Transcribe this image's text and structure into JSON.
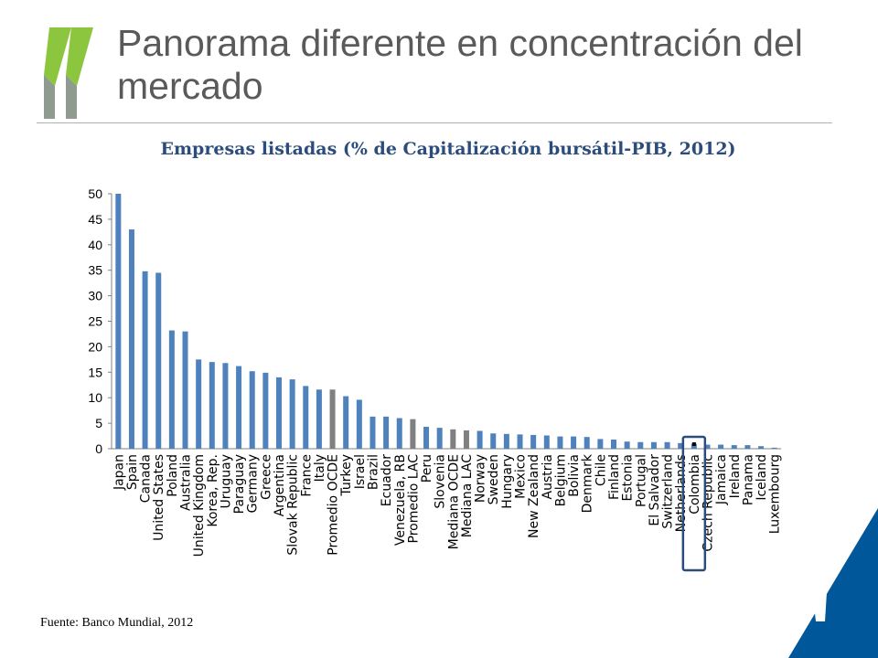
{
  "slide": {
    "title": "Panorama diferente en concentración del mercado",
    "source": "Fuente: Banco Mundial, 2012",
    "colors": {
      "title": "#5a5a5a",
      "chart_title": "#2c4d7c",
      "logo": "#8cc63f",
      "logo_shade": "#7a8a7a",
      "corner": "#00589a",
      "highlight_box": "#2c4d7c"
    }
  },
  "chart_data": {
    "type": "bar",
    "title": "Empresas listadas (% de Capitalización bursátil-PIB, 2012)",
    "xlabel": "",
    "ylabel": "",
    "ylim": [
      0,
      50
    ],
    "yticks": [
      0,
      5,
      10,
      15,
      20,
      25,
      30,
      35,
      40,
      45,
      50
    ],
    "grid": false,
    "colors": {
      "default": "#4f81bd",
      "aggregate": "#808080"
    },
    "highlight": "Colombia",
    "categories": [
      "Japan",
      "Spain",
      "Canada",
      "United States",
      "Poland",
      "Australia",
      "United Kingdom",
      "Korea, Rep.",
      "Uruguay",
      "Paraguay",
      "Germany",
      "Greece",
      "Argentina",
      "Slovak Republic",
      "France",
      "Italy",
      "Promedio OCDE",
      "Turkey",
      "Israel",
      "Brazil",
      "Ecuador",
      "Venezuela, RB",
      "Promedio LAC",
      "Peru",
      "Slovenia",
      "Mediana OCDE",
      "Mediana LAC",
      "Norway",
      "Sweden",
      "Hungary",
      "Mexico",
      "New Zealand",
      "Austria",
      "Belgium",
      "Bolivia",
      "Denmark",
      "Chile",
      "Finland",
      "Estonia",
      "Portugal",
      "El Salvador",
      "Switzerland",
      "Netherlands",
      "Colombia",
      "Czech Republic",
      "Jamaica",
      "Ireland",
      "Panama",
      "Iceland",
      "Luxembourg"
    ],
    "values": [
      50.0,
      43.0,
      34.8,
      34.5,
      23.2,
      23.0,
      17.5,
      17.0,
      16.8,
      16.2,
      15.2,
      14.9,
      14.0,
      13.6,
      12.3,
      11.6,
      11.6,
      10.3,
      9.6,
      6.3,
      6.3,
      6.0,
      5.8,
      4.3,
      4.1,
      3.8,
      3.6,
      3.5,
      3.0,
      2.9,
      2.8,
      2.7,
      2.6,
      2.4,
      2.4,
      2.3,
      1.9,
      1.8,
      1.4,
      1.3,
      1.3,
      1.3,
      1.1,
      1.0,
      0.8,
      0.8,
      0.7,
      0.7,
      0.5,
      0.2
    ],
    "aggregate_categories": [
      "Promedio OCDE",
      "Promedio LAC",
      "Mediana OCDE",
      "Mediana LAC"
    ]
  }
}
